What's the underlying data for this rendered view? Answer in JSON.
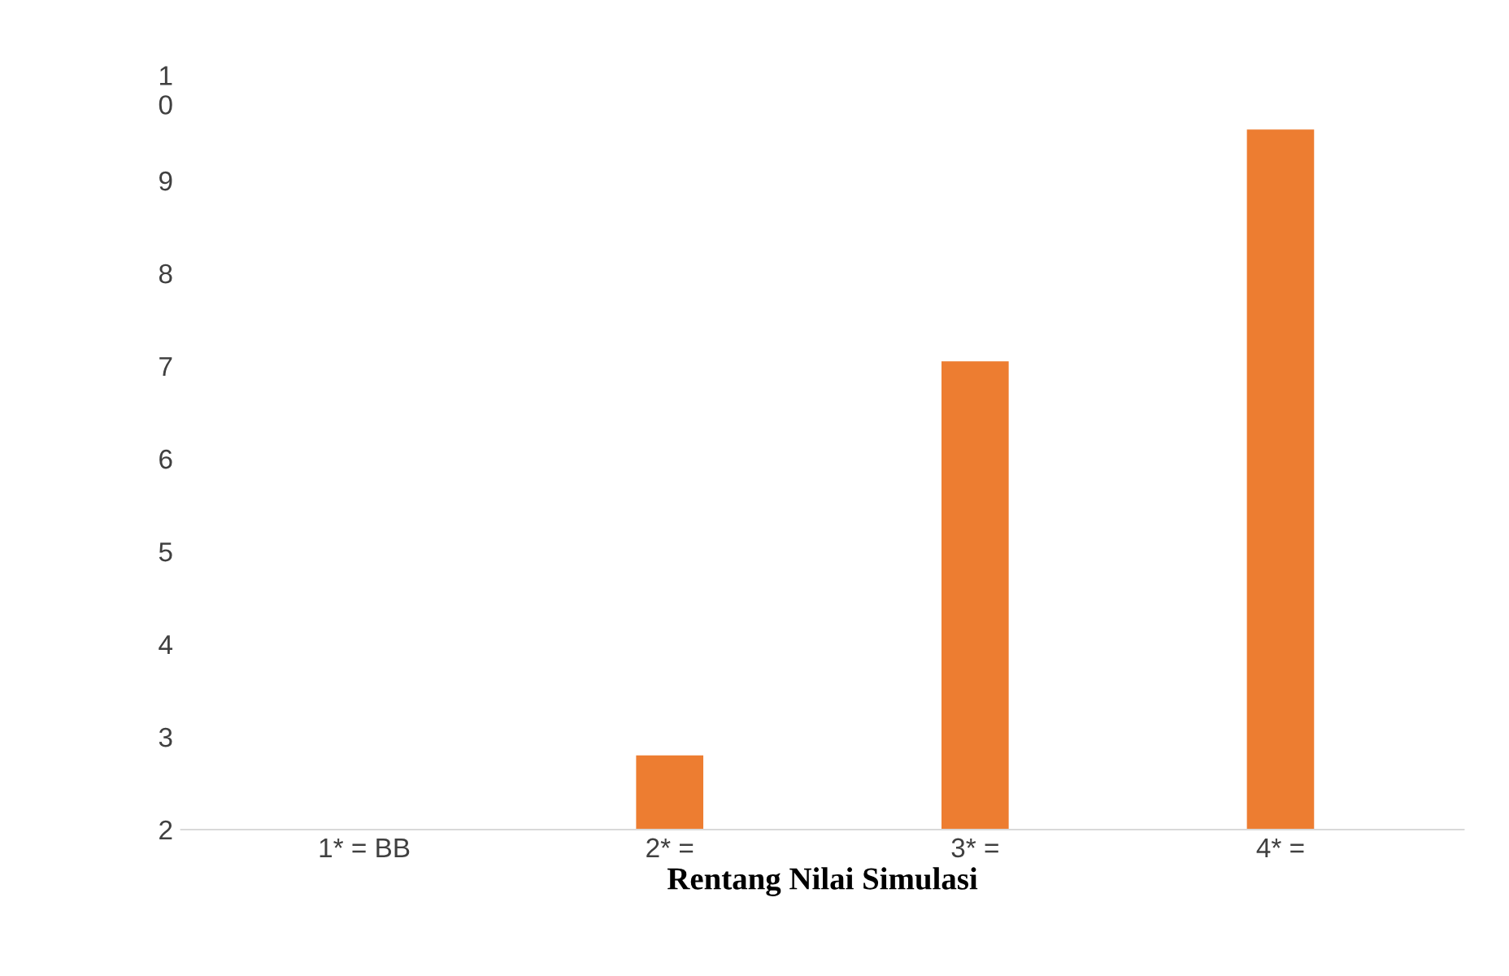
{
  "chart_data": {
    "type": "bar",
    "xlabel": "Rentang Nilai Simulasi",
    "categories": [
      "1* = BB",
      "2* =",
      "3* =",
      "4* ="
    ],
    "values": [
      null,
      2.8,
      7.05,
      9.55
    ],
    "color": "#ed7d31",
    "ylim": [
      2,
      10
    ],
    "yticks": [
      2,
      3,
      4,
      5,
      6,
      7,
      8,
      9,
      {
        "value": 10,
        "label": "1\n0"
      }
    ],
    "grid": false
  }
}
